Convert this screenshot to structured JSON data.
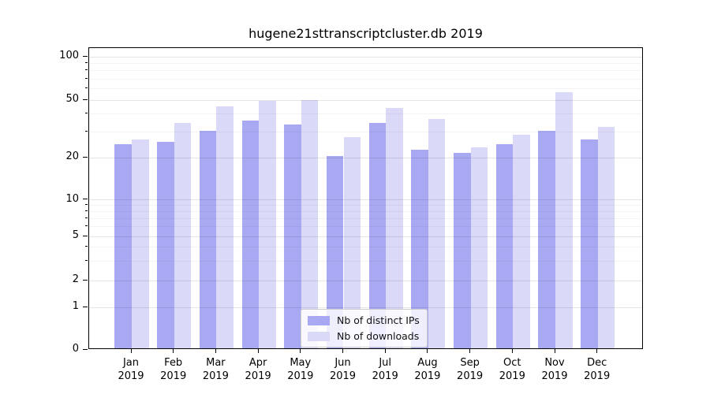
{
  "title": "hugene21sttranscriptcluster.db 2019",
  "legend": {
    "items": [
      {
        "label": "Nb of distinct IPs",
        "color": "#a9a9f3"
      },
      {
        "label": "Nb of downloads",
        "color": "#dadaf8"
      }
    ]
  },
  "x_axis": {
    "months": [
      "Jan",
      "Feb",
      "Mar",
      "Apr",
      "May",
      "Jun",
      "Jul",
      "Aug",
      "Sep",
      "Oct",
      "Nov",
      "Dec"
    ],
    "year": "2019"
  },
  "y_axis": {
    "tick_values": [
      0,
      1,
      2,
      5,
      10,
      20,
      50,
      100
    ],
    "minor_tick_values": [
      3,
      4,
      6,
      7,
      8,
      9,
      30,
      40,
      60,
      70,
      80,
      90
    ]
  },
  "chart_data": {
    "type": "bar",
    "title": "hugene21sttranscriptcluster.db 2019",
    "categories": [
      "Jan 2019",
      "Feb 2019",
      "Mar 2019",
      "Apr 2019",
      "May 2019",
      "Jun 2019",
      "Jul 2019",
      "Aug 2019",
      "Sep 2019",
      "Oct 2019",
      "Nov 2019",
      "Dec 2019"
    ],
    "series": [
      {
        "name": "Nb of distinct IPs",
        "color": "#a9a9f3",
        "values": [
          24,
          25,
          30,
          35,
          33,
          20,
          34,
          22,
          21,
          24,
          30,
          26
        ]
      },
      {
        "name": "Nb of downloads",
        "color": "#dadaf8",
        "values": [
          26,
          34,
          44,
          48,
          49,
          27,
          43,
          36,
          23,
          28,
          55,
          32
        ]
      }
    ],
    "yscale": "log",
    "yticks": [
      0,
      1,
      2,
      5,
      10,
      20,
      50,
      100
    ],
    "ylim": [
      0,
      115
    ],
    "grid": true,
    "legend_position": "lower center"
  },
  "colors": {
    "bar_distinct_ips": "#a9a9f3",
    "bar_downloads": "#dadaf8",
    "grid_major": "rgba(0,0,0,0.10)",
    "grid_minor": "rgba(0,0,0,0.045)",
    "axis": "#000000",
    "legend_border": "#cccccc",
    "background": "#ffffff"
  }
}
